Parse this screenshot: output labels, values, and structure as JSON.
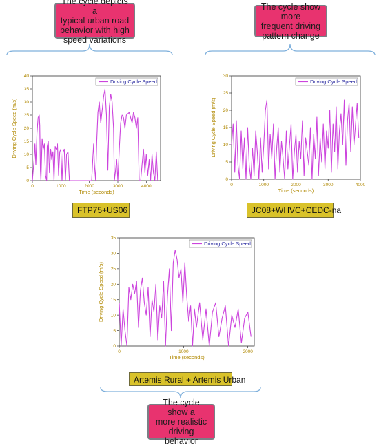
{
  "callouts": {
    "top_left": [
      "The cycle depicts a",
      "typical urban road",
      "behavior with high",
      "speed variations"
    ],
    "top_right": [
      "The cycle show more",
      "frequent driving",
      "pattern change"
    ],
    "bottom": [
      "The cycle show a",
      "more realistic driving",
      "behavior"
    ]
  },
  "labels": {
    "chart1": "FTP75+US06",
    "chart2": "JC08+WHVC+CEDC-na",
    "chart3": "Artemis Rural + Artemis Urban"
  },
  "colors": {
    "callout_fill": "#e8336f",
    "label_fill": "#d9c22a",
    "series_line": "#cc44dd",
    "axis_text": "#b08800",
    "legend_text": "#2a2aa0"
  },
  "chart_data": [
    {
      "type": "line",
      "title": "",
      "xlabel": "Time (seconds)",
      "ylabel": "Driving Cycle Speed (m/s)",
      "xlim": [
        0,
        4500
      ],
      "ylim": [
        0,
        40
      ],
      "xticks": [
        0,
        1000,
        2000,
        3000,
        4000
      ],
      "yticks": [
        0,
        5,
        10,
        15,
        20,
        25,
        30,
        35,
        40
      ],
      "legend": "top-right",
      "series": [
        {
          "name": "Driving Cycle Speed",
          "x": [
            0,
            60,
            90,
            120,
            160,
            200,
            240,
            260,
            280,
            300,
            340,
            380,
            420,
            460,
            500,
            520,
            560,
            600,
            640,
            680,
            720,
            760,
            800,
            840,
            880,
            920,
            960,
            1000,
            1040,
            1080,
            1120,
            1160,
            1200,
            1250,
            1300,
            1400,
            1500,
            1600,
            1700,
            1800,
            1900,
            2000,
            2050,
            2080,
            2120,
            2150,
            2180,
            2220,
            2260,
            2300,
            2350,
            2400,
            2450,
            2500,
            2550,
            2600,
            2650,
            2700,
            2750,
            2800,
            2850,
            2880,
            2920,
            2960,
            3000,
            3050,
            3100,
            3150,
            3200,
            3250,
            3300,
            3400,
            3500,
            3550,
            3600,
            3650,
            3700,
            3750,
            3800,
            3850,
            3900,
            3950,
            4000,
            4050,
            4100,
            4150,
            4200,
            4250,
            4300,
            4350,
            4400
          ],
          "values": [
            0,
            8,
            14,
            6,
            18,
            24,
            25,
            21,
            4,
            0,
            16,
            12,
            14,
            2,
            0,
            13,
            15,
            3,
            12,
            8,
            11,
            0,
            13,
            12,
            14,
            2,
            11,
            12,
            0,
            11,
            12,
            0,
            10,
            11,
            0,
            0,
            0,
            0,
            0,
            0,
            0,
            0,
            0,
            0,
            8,
            14,
            6,
            0,
            15,
            26,
            30,
            22,
            27,
            32,
            35,
            25,
            4,
            28,
            33,
            30,
            20,
            0,
            4,
            8,
            0,
            12,
            22,
            25,
            24,
            20,
            25,
            26,
            22,
            26,
            24,
            20,
            24,
            0,
            0,
            6,
            12,
            3,
            10,
            2,
            8,
            0,
            10,
            3,
            0,
            11,
            0
          ]
        }
      ]
    },
    {
      "type": "line",
      "title": "",
      "xlabel": "Time (seconds)",
      "ylabel": "Driving Cycle Speed (m/s)",
      "xlim": [
        0,
        4000
      ],
      "ylim": [
        0,
        30
      ],
      "xticks": [
        0,
        1000,
        2000,
        3000,
        4000
      ],
      "yticks": [
        0,
        5,
        10,
        15,
        20,
        25,
        30
      ],
      "legend": "top-right",
      "series": [
        {
          "name": "Driving Cycle Speed",
          "x": [
            0,
            50,
            100,
            150,
            200,
            250,
            300,
            350,
            400,
            450,
            500,
            550,
            600,
            650,
            700,
            750,
            800,
            850,
            900,
            950,
            1000,
            1050,
            1100,
            1150,
            1200,
            1250,
            1300,
            1350,
            1400,
            1450,
            1500,
            1550,
            1600,
            1650,
            1700,
            1750,
            1800,
            1850,
            1900,
            1950,
            2000,
            2050,
            2100,
            2150,
            2200,
            2250,
            2300,
            2350,
            2400,
            2450,
            2500,
            2550,
            2600,
            2650,
            2700,
            2750,
            2800,
            2850,
            2900,
            2950,
            3000,
            3050,
            3100,
            3150,
            3200,
            3250,
            3300,
            3350,
            3400,
            3450,
            3500,
            3550,
            3600,
            3650,
            3700,
            3750,
            3800,
            3850,
            3900,
            3950
          ],
          "values": [
            10,
            16,
            2,
            17,
            4,
            0,
            14,
            3,
            12,
            0,
            15,
            4,
            0,
            9,
            1,
            14,
            8,
            0,
            12,
            2,
            10,
            20,
            23,
            3,
            13,
            6,
            16,
            0,
            9,
            15,
            2,
            11,
            6,
            0,
            14,
            3,
            10,
            16,
            0,
            8,
            13,
            2,
            11,
            6,
            17,
            1,
            12,
            8,
            4,
            15,
            0,
            13,
            6,
            18,
            1,
            12,
            5,
            16,
            3,
            14,
            9,
            20,
            2,
            16,
            8,
            21,
            3,
            14,
            19,
            10,
            23,
            4,
            17,
            22,
            8,
            21,
            10,
            16,
            22,
            12
          ]
        }
      ]
    },
    {
      "type": "line",
      "title": "",
      "xlabel": "Time (seconds)",
      "ylabel": "Driving Cycle Speed (m/s)",
      "xlim": [
        0,
        2100
      ],
      "ylim": [
        0,
        35
      ],
      "xticks": [
        0,
        1000,
        2000
      ],
      "yticks": [
        0,
        5,
        10,
        15,
        20,
        25,
        30,
        35
      ],
      "legend": "top-right",
      "series": [
        {
          "name": "Driving Cycle Speed",
          "x": [
            0,
            30,
            60,
            90,
            120,
            150,
            180,
            210,
            240,
            270,
            300,
            330,
            360,
            390,
            420,
            450,
            480,
            510,
            540,
            570,
            600,
            630,
            660,
            690,
            720,
            750,
            780,
            810,
            840,
            870,
            900,
            930,
            960,
            990,
            1020,
            1050,
            1080,
            1110,
            1140,
            1170,
            1200,
            1250,
            1300,
            1350,
            1400,
            1450,
            1500,
            1550,
            1600,
            1650,
            1700,
            1750,
            1800,
            1850,
            1900,
            1950,
            2000,
            2050
          ],
          "values": [
            14,
            0,
            12,
            5,
            0,
            19,
            15,
            20,
            17,
            21,
            6,
            18,
            22,
            14,
            10,
            19,
            3,
            15,
            11,
            20,
            2,
            13,
            9,
            21,
            0,
            16,
            25,
            5,
            27,
            31,
            28,
            22,
            25,
            14,
            27,
            16,
            8,
            13,
            0,
            12,
            6,
            14,
            2,
            12,
            0,
            11,
            14,
            3,
            9,
            13,
            0,
            10,
            6,
            12,
            1,
            9,
            11,
            3
          ]
        }
      ]
    }
  ]
}
